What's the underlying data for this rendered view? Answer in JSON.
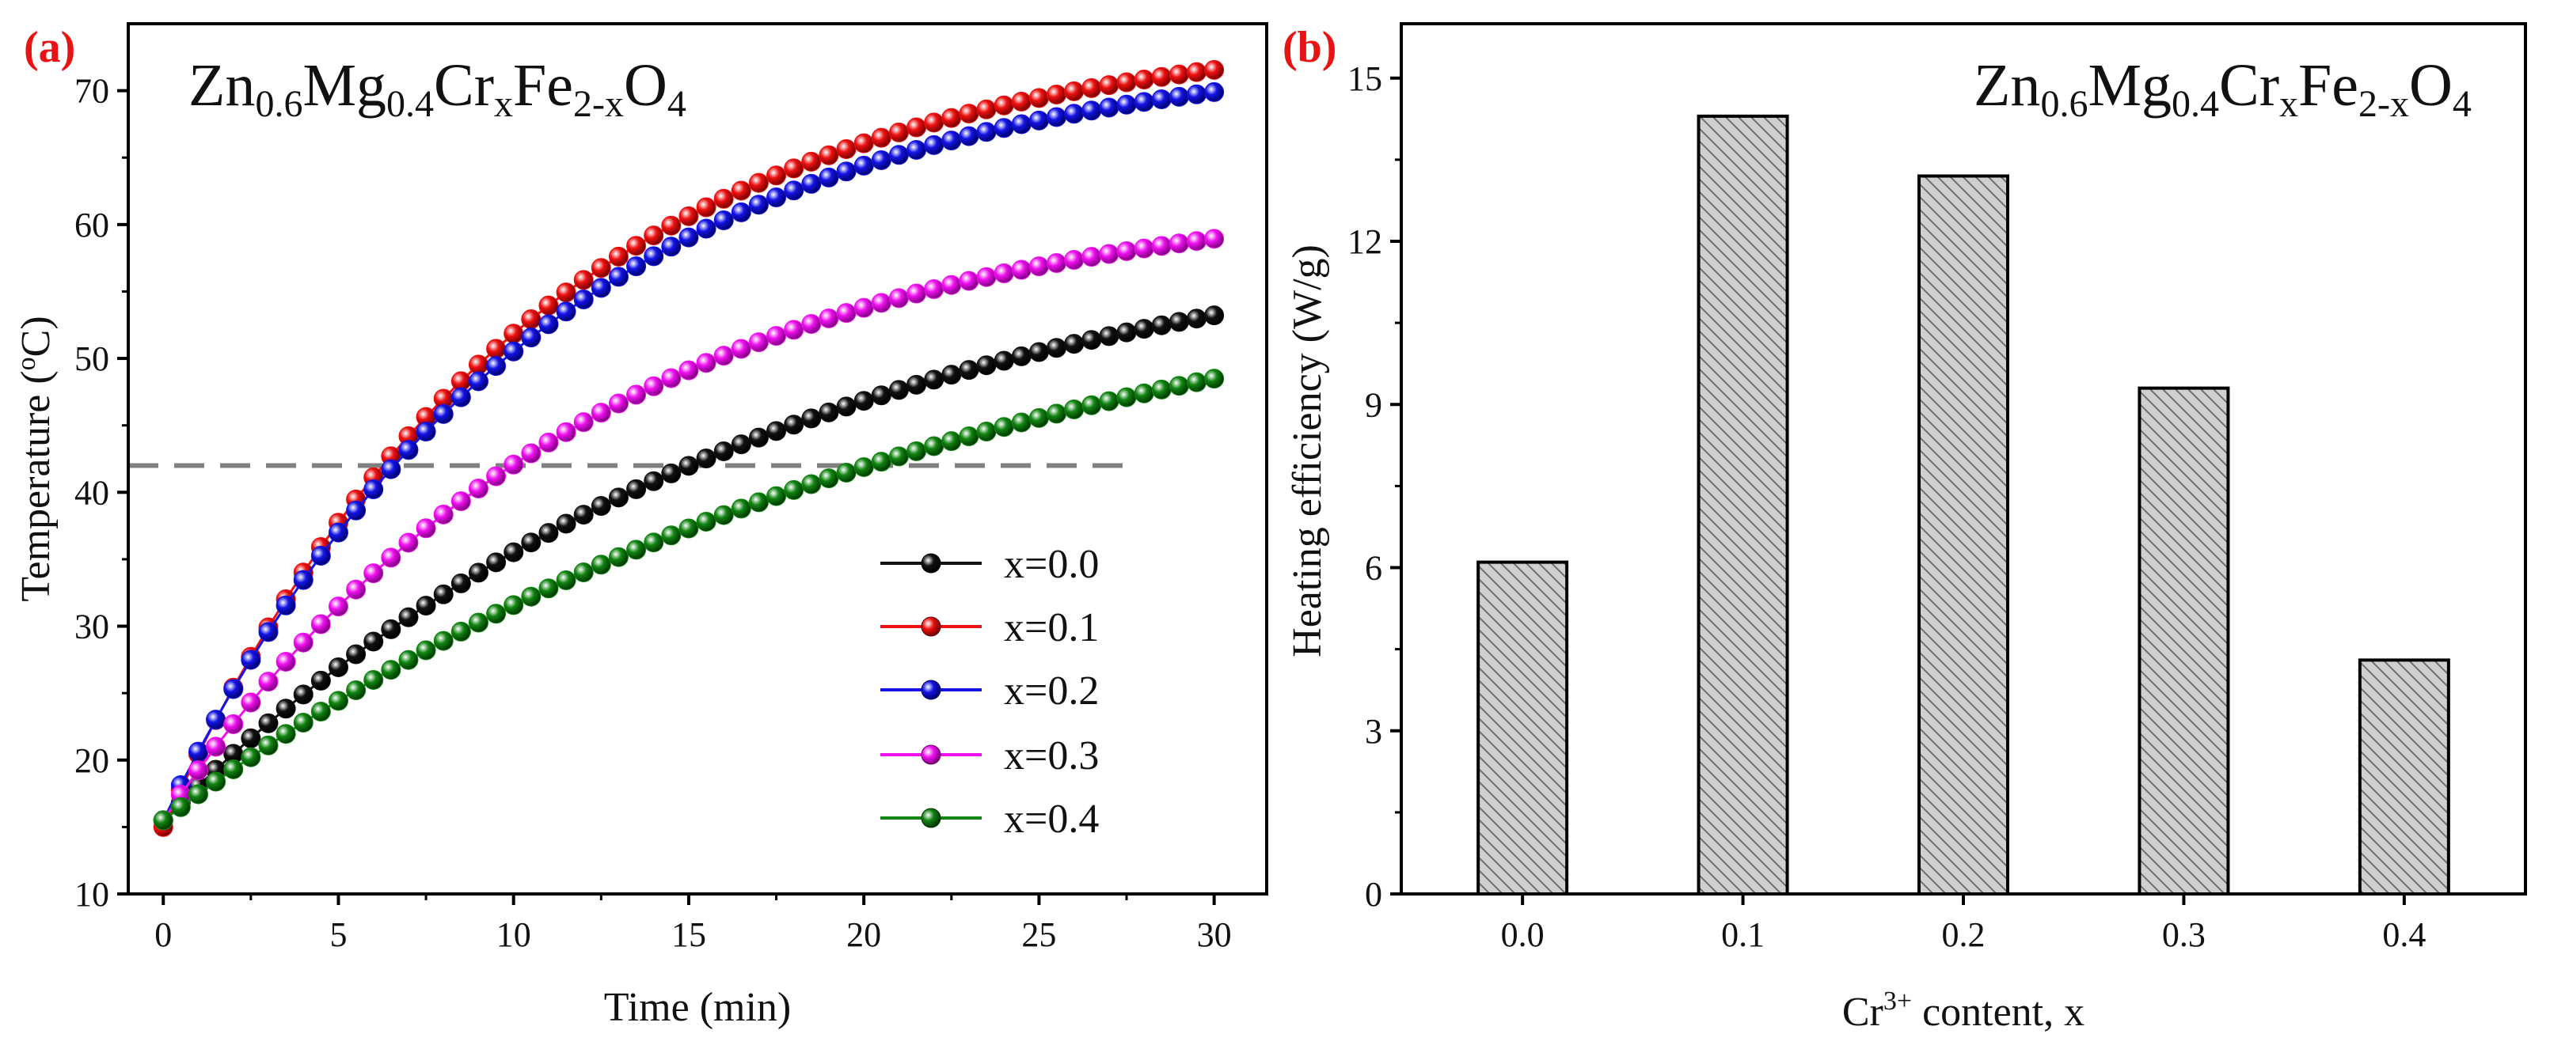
{
  "colors": {
    "series_0": "#111111",
    "series_1": "#ee1111",
    "series_2": "#1414e6",
    "series_3": "#f010f0",
    "series_4": "#128512",
    "threshold": "#808080",
    "bar_fill": "#cfcfcf",
    "bar_hatch": "#6e6e6e",
    "panel_label": "#e81414"
  },
  "chart_data": [
    {
      "panel": "(a)",
      "type": "line",
      "title": "",
      "formula": {
        "a": "Zn",
        "a_sub": "0.6",
        "b": "Mg",
        "b_sub": "0.4",
        "c": "Cr",
        "c_sub": "x",
        "d": "Fe",
        "d_sub": "2-x",
        "e": "O",
        "e_sub": "4"
      },
      "xlabel": "Time (min)",
      "ylabel": {
        "prefix": "Temperature (",
        "sup": "o",
        "suffix": "C)"
      },
      "xlim": [
        -1,
        31.5
      ],
      "ylim": [
        10,
        75
      ],
      "xticks": [
        0,
        5,
        10,
        15,
        20,
        25,
        30
      ],
      "yticks": [
        10,
        20,
        30,
        40,
        50,
        60,
        70
      ],
      "sampling": {
        "x_start": 0,
        "x_end": 30,
        "step": 0.5
      },
      "threshold": {
        "y": 42,
        "x_start": -1,
        "x_end": 27.5,
        "style": "dashed"
      },
      "legend_position": "lower-right",
      "series": [
        {
          "name": "x=0.0",
          "T0": 15.5,
          "Tinf": 61.5,
          "tau": 17.5
        },
        {
          "name": "x=0.1",
          "T0": 15.0,
          "Tinf": 75.0,
          "tau": 10.5
        },
        {
          "name": "x=0.2",
          "T0": 15.5,
          "Tinf": 73.5,
          "tau": 10.8
        },
        {
          "name": "x=0.3",
          "T0": 15.5,
          "Tinf": 63.0,
          "tau": 12.2
        },
        {
          "name": "x=0.4",
          "T0": 15.5,
          "Tinf": 60.3,
          "tau": 22.5
        }
      ]
    },
    {
      "panel": "(b)",
      "type": "bar",
      "title": "",
      "formula": {
        "a": "Zn",
        "a_sub": "0.6",
        "b": "Mg",
        "b_sub": "0.4",
        "c": "Cr",
        "c_sub": "x",
        "d": "Fe",
        "d_sub": "2-x",
        "e": "O",
        "e_sub": "4"
      },
      "xlabel": {
        "prefix": "Cr",
        "sup": "3+",
        "suffix": " content, x"
      },
      "ylabel": "Heating efficiency (W/g)",
      "ylim": [
        0,
        16
      ],
      "yticks": [
        0,
        3,
        6,
        9,
        12,
        15
      ],
      "categories": [
        "0.0",
        "0.1",
        "0.2",
        "0.3",
        "0.4"
      ],
      "values": [
        6.1,
        14.3,
        13.2,
        9.3,
        4.3
      ],
      "legend_position": "none"
    }
  ]
}
